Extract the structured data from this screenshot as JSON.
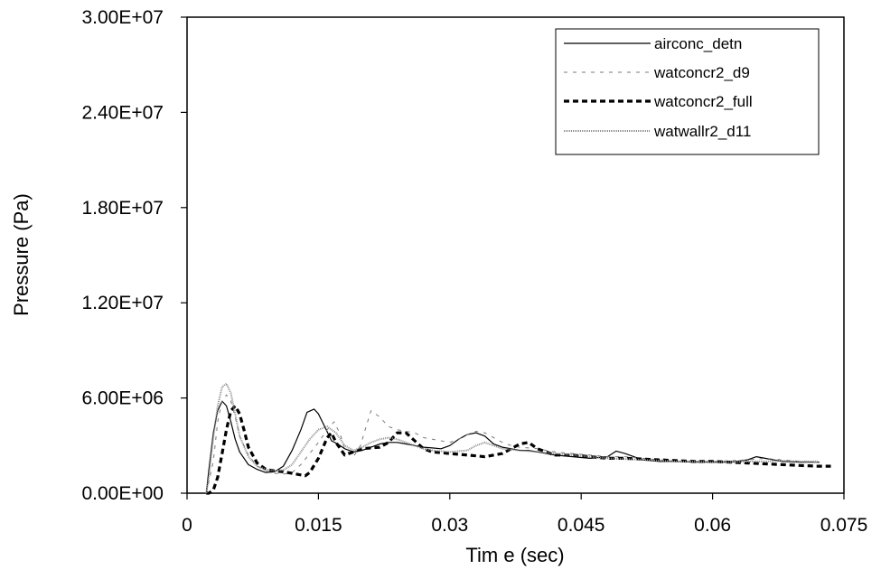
{
  "chart_data": {
    "type": "line",
    "title": "",
    "xlabel": "Tim e (sec)",
    "ylabel": "Pressure (Pa)",
    "xlim": [
      0,
      0.075
    ],
    "ylim": [
      0,
      30000000
    ],
    "x_ticks": [
      0,
      0.015,
      0.03,
      0.045,
      0.06,
      0.075
    ],
    "x_tick_labels": [
      "0",
      "0.015",
      "0.03",
      "0.045",
      "0.06",
      "0.075"
    ],
    "y_ticks": [
      0,
      6000000,
      12000000,
      18000000,
      24000000,
      30000000
    ],
    "y_tick_labels": [
      "0.00E+00",
      "6.00E+06",
      "1.20E+07",
      "1.80E+07",
      "2.40E+07",
      "3.00E+07"
    ],
    "grid": false,
    "legend_position": "top-right",
    "series": [
      {
        "name": "airconc_detn",
        "style": "solid-thin",
        "color": "#000000",
        "x": [
          0.0022,
          0.0025,
          0.003,
          0.0035,
          0.004,
          0.0045,
          0.005,
          0.0055,
          0.006,
          0.007,
          0.008,
          0.009,
          0.01,
          0.011,
          0.012,
          0.013,
          0.0137,
          0.0145,
          0.015,
          0.0158,
          0.0165,
          0.0172,
          0.018,
          0.019,
          0.02,
          0.021,
          0.022,
          0.023,
          0.024,
          0.025,
          0.026,
          0.027,
          0.028,
          0.029,
          0.03,
          0.031,
          0.032,
          0.033,
          0.034,
          0.035,
          0.036,
          0.037,
          0.038,
          0.039,
          0.04,
          0.042,
          0.044,
          0.046,
          0.048,
          0.049,
          0.05,
          0.052,
          0.054,
          0.056,
          0.058,
          0.06,
          0.062,
          0.064,
          0.065,
          0.066,
          0.068,
          0.07,
          0.0722
        ],
        "y": [
          0,
          1500000,
          3800000,
          5200000,
          5800000,
          5500000,
          4500000,
          3400000,
          2600000,
          1800000,
          1500000,
          1300000,
          1350000,
          1700000,
          2700000,
          4000000,
          5100000,
          5300000,
          5000000,
          4100000,
          3300000,
          3100000,
          2800000,
          2600000,
          2700000,
          2900000,
          3100000,
          3200000,
          3200000,
          3100000,
          3000000,
          2900000,
          2850000,
          2800000,
          3000000,
          3400000,
          3700000,
          3800000,
          3600000,
          3100000,
          2900000,
          2800000,
          2700000,
          2700000,
          2600000,
          2400000,
          2300000,
          2200000,
          2300000,
          2650000,
          2500000,
          2100000,
          2000000,
          2000000,
          1950000,
          1950000,
          1950000,
          2100000,
          2300000,
          2200000,
          2000000,
          1950000,
          1950000
        ]
      },
      {
        "name": "watconcr2_d9",
        "style": "dashed-light",
        "color": "#7a7a7a",
        "x": [
          0.0022,
          0.003,
          0.0035,
          0.004,
          0.0045,
          0.005,
          0.0055,
          0.006,
          0.007,
          0.008,
          0.009,
          0.01,
          0.011,
          0.012,
          0.013,
          0.014,
          0.015,
          0.016,
          0.0168,
          0.0175,
          0.018,
          0.019,
          0.0198,
          0.0205,
          0.021,
          0.022,
          0.023,
          0.024,
          0.025,
          0.026,
          0.027,
          0.028,
          0.029,
          0.03,
          0.031,
          0.032,
          0.033,
          0.034,
          0.035,
          0.036,
          0.037,
          0.038,
          0.039,
          0.04,
          0.042,
          0.044,
          0.046,
          0.048,
          0.05,
          0.052,
          0.054,
          0.056,
          0.058,
          0.06,
          0.062,
          0.064,
          0.066,
          0.068,
          0.07,
          0.0725
        ],
        "y": [
          0,
          2000000,
          4500000,
          5800000,
          6200000,
          5800000,
          4800000,
          3600000,
          2400000,
          1700000,
          1400000,
          1250000,
          1200000,
          1300000,
          1800000,
          2500000,
          3200000,
          4000000,
          4500000,
          3700000,
          2800000,
          2300000,
          3000000,
          4300000,
          5200000,
          4800000,
          4200000,
          4000000,
          3900000,
          3800000,
          3500000,
          3400000,
          3300000,
          3200000,
          3400000,
          3700000,
          3900000,
          3800000,
          3500000,
          3200000,
          3000000,
          2900000,
          2850000,
          2800000,
          2600000,
          2500000,
          2400000,
          2300000,
          2300000,
          2200000,
          2100000,
          2000000,
          2000000,
          2000000,
          2050000,
          2100000,
          2200000,
          2100000,
          2000000,
          1950000
        ]
      },
      {
        "name": "watconcr2_full",
        "style": "dashed-bold",
        "color": "#000000",
        "x": [
          0.0022,
          0.0025,
          0.003,
          0.0035,
          0.004,
          0.0045,
          0.005,
          0.0055,
          0.006,
          0.0065,
          0.007,
          0.008,
          0.009,
          0.01,
          0.011,
          0.012,
          0.013,
          0.0135,
          0.014,
          0.015,
          0.016,
          0.0165,
          0.017,
          0.018,
          0.019,
          0.02,
          0.021,
          0.022,
          0.023,
          0.024,
          0.025,
          0.026,
          0.027,
          0.028,
          0.03,
          0.032,
          0.034,
          0.036,
          0.037,
          0.038,
          0.039,
          0.04,
          0.042,
          0.044,
          0.046,
          0.048,
          0.05,
          0.052,
          0.054,
          0.056,
          0.058,
          0.06,
          0.062,
          0.064,
          0.066,
          0.068,
          0.07,
          0.072,
          0.0735
        ],
        "y": [
          0,
          0,
          200000,
          1000000,
          2500000,
          4000000,
          5200000,
          5500000,
          5000000,
          4000000,
          2900000,
          1900000,
          1500000,
          1400000,
          1350000,
          1250000,
          1150000,
          1100000,
          1300000,
          2200000,
          3500000,
          3800000,
          3200000,
          2400000,
          2600000,
          2800000,
          2850000,
          2900000,
          3200000,
          3800000,
          3800000,
          3300000,
          2800000,
          2600000,
          2500000,
          2400000,
          2300000,
          2500000,
          2800000,
          3100000,
          3200000,
          2800000,
          2400000,
          2400000,
          2300000,
          2200000,
          2200000,
          2150000,
          2100000,
          2050000,
          2000000,
          2000000,
          1950000,
          1900000,
          1850000,
          1800000,
          1750000,
          1700000,
          1700000
        ]
      },
      {
        "name": "watwallr2_d11",
        "style": "dotted-gray",
        "color": "#8c8c8c",
        "x": [
          0.0022,
          0.0025,
          0.003,
          0.0035,
          0.004,
          0.0045,
          0.005,
          0.0055,
          0.006,
          0.007,
          0.008,
          0.009,
          0.01,
          0.011,
          0.012,
          0.013,
          0.014,
          0.015,
          0.016,
          0.017,
          0.018,
          0.019,
          0.02,
          0.021,
          0.022,
          0.023,
          0.024,
          0.025,
          0.026,
          0.027,
          0.028,
          0.03,
          0.032,
          0.033,
          0.034,
          0.035,
          0.036,
          0.038,
          0.04,
          0.042,
          0.044,
          0.046,
          0.048,
          0.05,
          0.052,
          0.054,
          0.056,
          0.058,
          0.06,
          0.062,
          0.064,
          0.066,
          0.068,
          0.07,
          0.072
        ],
        "y": [
          0,
          1000000,
          3500000,
          5500000,
          6700000,
          6900000,
          6300000,
          5000000,
          3600000,
          2300000,
          1700000,
          1500000,
          1400000,
          1450000,
          1800000,
          2600000,
          3400000,
          4000000,
          4200000,
          3800000,
          3000000,
          2700000,
          2900000,
          3200000,
          3400000,
          3500000,
          3400000,
          3200000,
          3000000,
          2800000,
          2700000,
          2600000,
          2700000,
          3000000,
          3200000,
          3000000,
          2800000,
          2700000,
          2600000,
          2500000,
          2400000,
          2300000,
          2200000,
          2150000,
          2100000,
          2050000,
          2000000,
          2000000,
          1950000,
          1950000,
          2000000,
          2000000,
          2050000,
          2000000,
          2000000
        ]
      }
    ]
  }
}
